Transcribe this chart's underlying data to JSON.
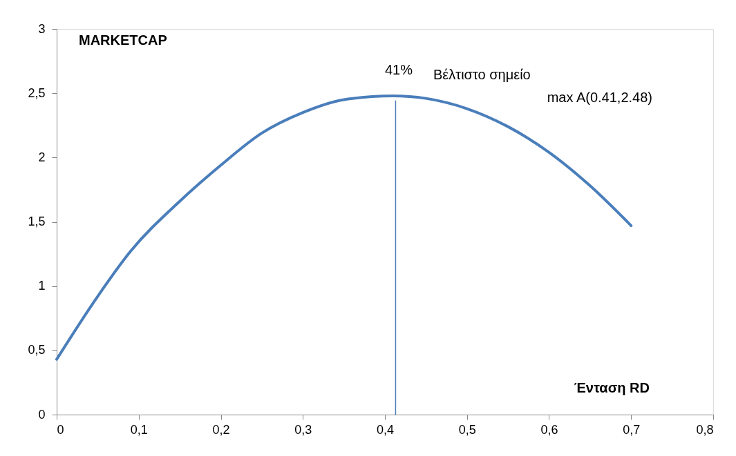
{
  "chart_data": {
    "type": "line",
    "xlabel": "Ένταση  RD",
    "ylabel": "MARKETCAP",
    "x": [
      0,
      0.05,
      0.09,
      0.15,
      0.2,
      0.25,
      0.3,
      0.35,
      0.41,
      0.45,
      0.5,
      0.55,
      0.6,
      0.65,
      0.7
    ],
    "series": [
      {
        "color": "#4a7ebb",
        "values": [
          0.43,
          0.92,
          1.27,
          1.66,
          1.94,
          2.19,
          2.35,
          2.45,
          2.48,
          2.46,
          2.38,
          2.24,
          2.04,
          1.78,
          1.47
        ]
      },
      {
        "type": "line",
        "color": "#4a7ebb",
        "x": [
          0.413,
          0.413
        ],
        "values": [
          0,
          2.44
        ]
      }
    ],
    "annotations": [
      "41%",
      "Βέλτιστο σημείο",
      "max A(0.41,2.48)"
    ],
    "xlim": [
      0,
      0.8
    ],
    "xticks": [
      {
        "value": 0,
        "label": "0"
      },
      {
        "value": 0.1,
        "label": "0,1"
      },
      {
        "value": 0.2,
        "label": "0,2"
      },
      {
        "value": 0.3,
        "label": "0,3"
      },
      {
        "value": 0.4,
        "label": "0,4"
      },
      {
        "value": 0.5,
        "label": "0,5"
      },
      {
        "value": 0.6,
        "label": "0,6"
      },
      {
        "value": 0.7,
        "label": "0,7"
      },
      {
        "value": 0.8,
        "label": "0,8"
      }
    ],
    "ylim": [
      0,
      3
    ],
    "yticks": [
      0,
      {
        "value": 0.5,
        "label": "0,5"
      },
      1,
      {
        "value": 1.5,
        "label": "1,5"
      },
      2,
      {
        "value": 2.5,
        "label": "2,5"
      },
      3
    ],
    "grid": false,
    "marker": "none",
    "line_style": "solid"
  }
}
